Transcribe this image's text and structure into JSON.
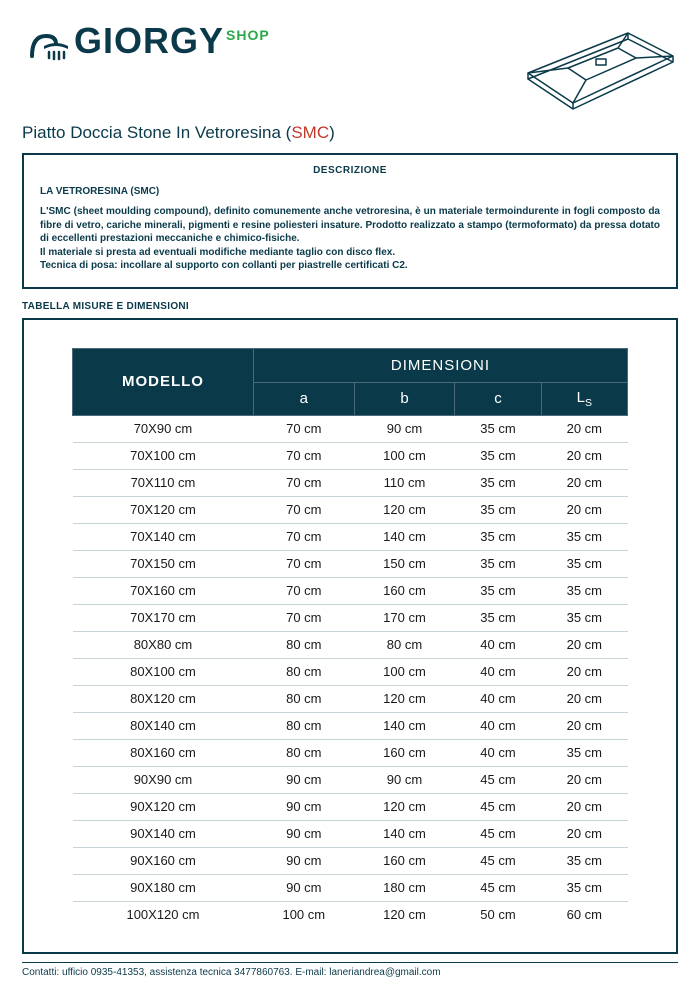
{
  "brand": {
    "name_part1": "GIORGY",
    "shop_label": "SHOP",
    "text_color": "#0a3a4a",
    "shop_color": "#2aa84a"
  },
  "product": {
    "title_prefix": "Piatto Doccia Stone In Vetroresina (",
    "title_accent": "SMC",
    "title_suffix": ")",
    "accent_color": "#c0392b"
  },
  "description": {
    "heading": "DESCRIZIONE",
    "subheading": "LA VETRORESINA (SMC)",
    "body": "L'SMC (sheet moulding compound), definito comunemente anche vetroresina, è un materiale termoindurente in fogli composto da fibre di vetro, cariche minerali, pigmenti e resine poliesteri insature. Prodotto realizzato a stampo (termoformato) da pressa dotato di eccellenti prestazioni meccaniche e chimico-fisiche.\nIl materiale si presta ad eventuali modifiche mediante taglio con disco flex.\nTecnica di posa: incollare al supporto con collanti per piastrelle certificati C2."
  },
  "table": {
    "section_label": "TABELLA MISURE E DIMENSIONI",
    "header_model": "MODELLO",
    "header_dimensions": "DIMENSIONI",
    "columns": [
      "a",
      "b",
      "c",
      "Ls"
    ],
    "header_bg": "#0a3a4a",
    "header_fg": "#ffffff",
    "row_border": "#c8d4d8",
    "rows": [
      {
        "model": "70X90 cm",
        "a": "70 cm",
        "b": "90 cm",
        "c": "35 cm",
        "ls": "20 cm"
      },
      {
        "model": "70X100 cm",
        "a": "70 cm",
        "b": "100 cm",
        "c": "35 cm",
        "ls": "20 cm"
      },
      {
        "model": "70X110 cm",
        "a": "70 cm",
        "b": "110 cm",
        "c": "35 cm",
        "ls": "20 cm"
      },
      {
        "model": "70X120 cm",
        "a": "70 cm",
        "b": "120 cm",
        "c": "35 cm",
        "ls": "20 cm"
      },
      {
        "model": "70X140 cm",
        "a": "70 cm",
        "b": "140 cm",
        "c": "35 cm",
        "ls": "35 cm"
      },
      {
        "model": "70X150 cm",
        "a": "70 cm",
        "b": "150 cm",
        "c": "35 cm",
        "ls": "35 cm"
      },
      {
        "model": "70X160 cm",
        "a": "70 cm",
        "b": "160 cm",
        "c": "35 cm",
        "ls": "35 cm"
      },
      {
        "model": "70X170 cm",
        "a": "70 cm",
        "b": "170 cm",
        "c": "35 cm",
        "ls": "35 cm"
      },
      {
        "model": "80X80 cm",
        "a": "80 cm",
        "b": "80 cm",
        "c": "40 cm",
        "ls": "20 cm"
      },
      {
        "model": "80X100 cm",
        "a": "80 cm",
        "b": "100 cm",
        "c": "40 cm",
        "ls": "20 cm"
      },
      {
        "model": "80X120 cm",
        "a": "80 cm",
        "b": "120 cm",
        "c": "40 cm",
        "ls": "20 cm"
      },
      {
        "model": "80X140 cm",
        "a": "80 cm",
        "b": "140 cm",
        "c": "40 cm",
        "ls": "20 cm"
      },
      {
        "model": "80X160 cm",
        "a": "80 cm",
        "b": "160 cm",
        "c": "40 cm",
        "ls": "35 cm"
      },
      {
        "model": "90X90 cm",
        "a": "90 cm",
        "b": "90 cm",
        "c": "45 cm",
        "ls": "20 cm"
      },
      {
        "model": "90X120 cm",
        "a": "90 cm",
        "b": "120 cm",
        "c": "45 cm",
        "ls": "20 cm"
      },
      {
        "model": "90X140 cm",
        "a": "90 cm",
        "b": "140 cm",
        "c": "45 cm",
        "ls": "20 cm"
      },
      {
        "model": "90X160 cm",
        "a": "90 cm",
        "b": "160 cm",
        "c": "45 cm",
        "ls": "35 cm"
      },
      {
        "model": "90X180 cm",
        "a": "90 cm",
        "b": "180 cm",
        "c": "45 cm",
        "ls": "35 cm"
      },
      {
        "model": "100X120 cm",
        "a": "100 cm",
        "b": "120 cm",
        "c": "50 cm",
        "ls": "60 cm"
      }
    ]
  },
  "footer": {
    "text": "Contatti: ufficio 0935-41353, assistenza tecnica 3477860763.  E-mail: laneriandrea@gmail.com"
  },
  "colors": {
    "primary": "#0a3a4a",
    "background": "#ffffff"
  }
}
